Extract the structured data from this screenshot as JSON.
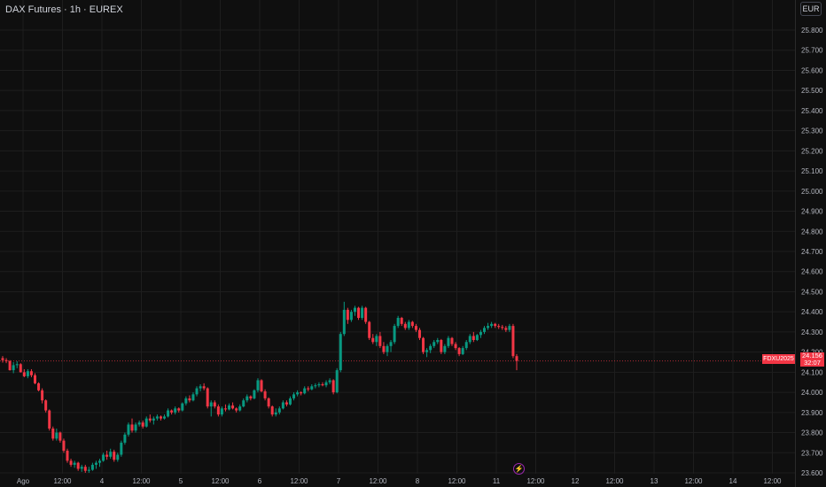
{
  "header": {
    "title": "DAX Futures · 1h · EUREX"
  },
  "currency_button": "EUR",
  "colors": {
    "background": "#0f0f0f",
    "grid": "#1e1e1e",
    "text": "#b2b5be",
    "up": "#089981",
    "down": "#f23645"
  },
  "badge": {
    "symbol": "FDXU2025",
    "price": "24.156",
    "countdown": "32:07"
  },
  "event_icon": "flash-icon",
  "chart_data": {
    "type": "candlestick",
    "title": "DAX Futures · 1h · EUREX",
    "y_ticks": [
      "25.800",
      "25.700",
      "25.600",
      "25.500",
      "25.400",
      "25.300",
      "25.200",
      "25.100",
      "25.000",
      "24.900",
      "24.800",
      "24.700",
      "24.600",
      "24.500",
      "24.400",
      "24.300",
      "24.200",
      "24.100",
      "24.000",
      "23.900",
      "23.800",
      "23.700",
      "23.600"
    ],
    "ylim": [
      23590,
      25870
    ],
    "x_ticks": [
      "Ago",
      "12:00",
      "4",
      "12:00",
      "5",
      "12:00",
      "6",
      "12:00",
      "7",
      "12:00",
      "8",
      "12:00",
      "11",
      "12:00",
      "12",
      "12:00",
      "13",
      "12:00",
      "14",
      "12:00"
    ],
    "last_price": 24156,
    "grid": true,
    "candles": [
      [
        24170,
        24180,
        24148,
        24160
      ],
      [
        24160,
        24170,
        24145,
        24155
      ],
      [
        24155,
        24160,
        24108,
        24110
      ],
      [
        24110,
        24150,
        24095,
        24135
      ],
      [
        24135,
        24155,
        24120,
        24140
      ],
      [
        24140,
        24145,
        24098,
        24100
      ],
      [
        24100,
        24115,
        24075,
        24080
      ],
      [
        24080,
        24115,
        24070,
        24105
      ],
      [
        24105,
        24115,
        24075,
        24085
      ],
      [
        24085,
        24095,
        24040,
        24045
      ],
      [
        24045,
        24050,
        24005,
        24010
      ],
      [
        24010,
        24020,
        23945,
        23960
      ],
      [
        23960,
        23965,
        23900,
        23910
      ],
      [
        23910,
        23915,
        23810,
        23820
      ],
      [
        23820,
        23830,
        23760,
        23770
      ],
      [
        23770,
        23820,
        23760,
        23800
      ],
      [
        23800,
        23805,
        23750,
        23760
      ],
      [
        23760,
        23770,
        23700,
        23710
      ],
      [
        23710,
        23720,
        23650,
        23660
      ],
      [
        23660,
        23670,
        23630,
        23640
      ],
      [
        23640,
        23660,
        23625,
        23650
      ],
      [
        23650,
        23655,
        23610,
        23620
      ],
      [
        23620,
        23640,
        23605,
        23630
      ],
      [
        23630,
        23640,
        23600,
        23610
      ],
      [
        23610,
        23630,
        23600,
        23615
      ],
      [
        23615,
        23650,
        23610,
        23640
      ],
      [
        23640,
        23660,
        23620,
        23650
      ],
      [
        23650,
        23670,
        23630,
        23660
      ],
      [
        23660,
        23700,
        23655,
        23690
      ],
      [
        23690,
        23710,
        23665,
        23680
      ],
      [
        23680,
        23720,
        23670,
        23705
      ],
      [
        23705,
        23715,
        23655,
        23665
      ],
      [
        23665,
        23700,
        23655,
        23690
      ],
      [
        23690,
        23760,
        23680,
        23750
      ],
      [
        23750,
        23800,
        23740,
        23790
      ],
      [
        23790,
        23850,
        23780,
        23840
      ],
      [
        23840,
        23870,
        23800,
        23810
      ],
      [
        23810,
        23850,
        23800,
        23840
      ],
      [
        23840,
        23860,
        23830,
        23850
      ],
      [
        23850,
        23860,
        23820,
        23830
      ],
      [
        23830,
        23880,
        23825,
        23870
      ],
      [
        23870,
        23890,
        23850,
        23860
      ],
      [
        23860,
        23880,
        23840,
        23870
      ],
      [
        23870,
        23890,
        23860,
        23880
      ],
      [
        23880,
        23885,
        23860,
        23870
      ],
      [
        23870,
        23890,
        23865,
        23880
      ],
      [
        23880,
        23920,
        23875,
        23910
      ],
      [
        23910,
        23915,
        23890,
        23900
      ],
      [
        23900,
        23930,
        23890,
        23920
      ],
      [
        23920,
        23925,
        23900,
        23910
      ],
      [
        23910,
        23950,
        23905,
        23945
      ],
      [
        23945,
        23980,
        23935,
        23970
      ],
      [
        23970,
        23985,
        23950,
        23960
      ],
      [
        23960,
        24000,
        23955,
        23990
      ],
      [
        23990,
        24030,
        23980,
        24020
      ],
      [
        24020,
        24040,
        24005,
        24030
      ],
      [
        24030,
        24045,
        24010,
        24020
      ],
      [
        24020,
        24025,
        23920,
        23930
      ],
      [
        23930,
        23960,
        23880,
        23950
      ],
      [
        23950,
        23960,
        23920,
        23930
      ],
      [
        23930,
        23940,
        23880,
        23890
      ],
      [
        23890,
        23930,
        23880,
        23920
      ],
      [
        23920,
        23940,
        23905,
        23915
      ],
      [
        23915,
        23945,
        23910,
        23935
      ],
      [
        23935,
        23950,
        23915,
        23920
      ],
      [
        23920,
        23925,
        23900,
        23910
      ],
      [
        23910,
        23940,
        23905,
        23930
      ],
      [
        23930,
        23970,
        23925,
        23960
      ],
      [
        23960,
        23990,
        23950,
        23980
      ],
      [
        23980,
        23985,
        23960,
        23970
      ],
      [
        23970,
        24015,
        23965,
        24010
      ],
      [
        24010,
        24070,
        24000,
        24060
      ],
      [
        24060,
        24065,
        24000,
        24005
      ],
      [
        24005,
        24015,
        23960,
        23970
      ],
      [
        23970,
        23975,
        23920,
        23930
      ],
      [
        23930,
        23935,
        23880,
        23890
      ],
      [
        23890,
        23920,
        23880,
        23900
      ],
      [
        23900,
        23930,
        23890,
        23920
      ],
      [
        23920,
        23960,
        23915,
        23950
      ],
      [
        23950,
        23960,
        23930,
        23940
      ],
      [
        23940,
        23980,
        23935,
        23970
      ],
      [
        23970,
        24000,
        23960,
        23990
      ],
      [
        23990,
        24010,
        23980,
        24000
      ],
      [
        24000,
        24005,
        23985,
        23995
      ],
      [
        23995,
        24030,
        23990,
        24020
      ],
      [
        24020,
        24030,
        24005,
        24015
      ],
      [
        24015,
        24040,
        24010,
        24030
      ],
      [
        24030,
        24045,
        24020,
        24035
      ],
      [
        24035,
        24050,
        24025,
        24040
      ],
      [
        24040,
        24050,
        24030,
        24035
      ],
      [
        24035,
        24060,
        24025,
        24050
      ],
      [
        24050,
        24070,
        24040,
        24060
      ],
      [
        24060,
        24065,
        23990,
        24000
      ],
      [
        24000,
        24120,
        23995,
        24110
      ],
      [
        24110,
        24300,
        24100,
        24290
      ],
      [
        24290,
        24450,
        24280,
        24410
      ],
      [
        24410,
        24420,
        24340,
        24360
      ],
      [
        24360,
        24410,
        24350,
        24400
      ],
      [
        24400,
        24430,
        24380,
        24420
      ],
      [
        24420,
        24425,
        24360,
        24370
      ],
      [
        24370,
        24430,
        24360,
        24420
      ],
      [
        24420,
        24425,
        24340,
        24350
      ],
      [
        24350,
        24355,
        24260,
        24270
      ],
      [
        24270,
        24290,
        24240,
        24250
      ],
      [
        24250,
        24290,
        24230,
        24280
      ],
      [
        24280,
        24300,
        24220,
        24230
      ],
      [
        24230,
        24250,
        24190,
        24200
      ],
      [
        24200,
        24240,
        24180,
        24230
      ],
      [
        24230,
        24260,
        24200,
        24250
      ],
      [
        24250,
        24340,
        24240,
        24330
      ],
      [
        24330,
        24380,
        24320,
        24370
      ],
      [
        24370,
        24375,
        24330,
        24340
      ],
      [
        24340,
        24350,
        24310,
        24320
      ],
      [
        24320,
        24360,
        24310,
        24350
      ],
      [
        24350,
        24355,
        24320,
        24330
      ],
      [
        24330,
        24340,
        24300,
        24310
      ],
      [
        24310,
        24320,
        24260,
        24270
      ],
      [
        24270,
        24275,
        24190,
        24200
      ],
      [
        24200,
        24220,
        24175,
        24210
      ],
      [
        24210,
        24240,
        24195,
        24230
      ],
      [
        24230,
        24260,
        24220,
        24250
      ],
      [
        24250,
        24270,
        24240,
        24260
      ],
      [
        24260,
        24265,
        24190,
        24200
      ],
      [
        24200,
        24240,
        24190,
        24230
      ],
      [
        24230,
        24280,
        24220,
        24270
      ],
      [
        24270,
        24275,
        24230,
        24240
      ],
      [
        24240,
        24250,
        24210,
        24220
      ],
      [
        24220,
        24225,
        24180,
        24190
      ],
      [
        24190,
        24230,
        24185,
        24220
      ],
      [
        24220,
        24260,
        24210,
        24250
      ],
      [
        24250,
        24290,
        24240,
        24280
      ],
      [
        24280,
        24300,
        24250,
        24260
      ],
      [
        24260,
        24290,
        24255,
        24285
      ],
      [
        24285,
        24310,
        24270,
        24300
      ],
      [
        24300,
        24330,
        24290,
        24320
      ],
      [
        24320,
        24345,
        24310,
        24330
      ],
      [
        24330,
        24350,
        24320,
        24340
      ],
      [
        24340,
        24345,
        24320,
        24330
      ],
      [
        24330,
        24340,
        24315,
        24325
      ],
      [
        24325,
        24335,
        24310,
        24320
      ],
      [
        24320,
        24330,
        24300,
        24310
      ],
      [
        24310,
        24340,
        24300,
        24330
      ],
      [
        24330,
        24340,
        24170,
        24180
      ],
      [
        24180,
        24190,
        24110,
        24156
      ]
    ]
  }
}
